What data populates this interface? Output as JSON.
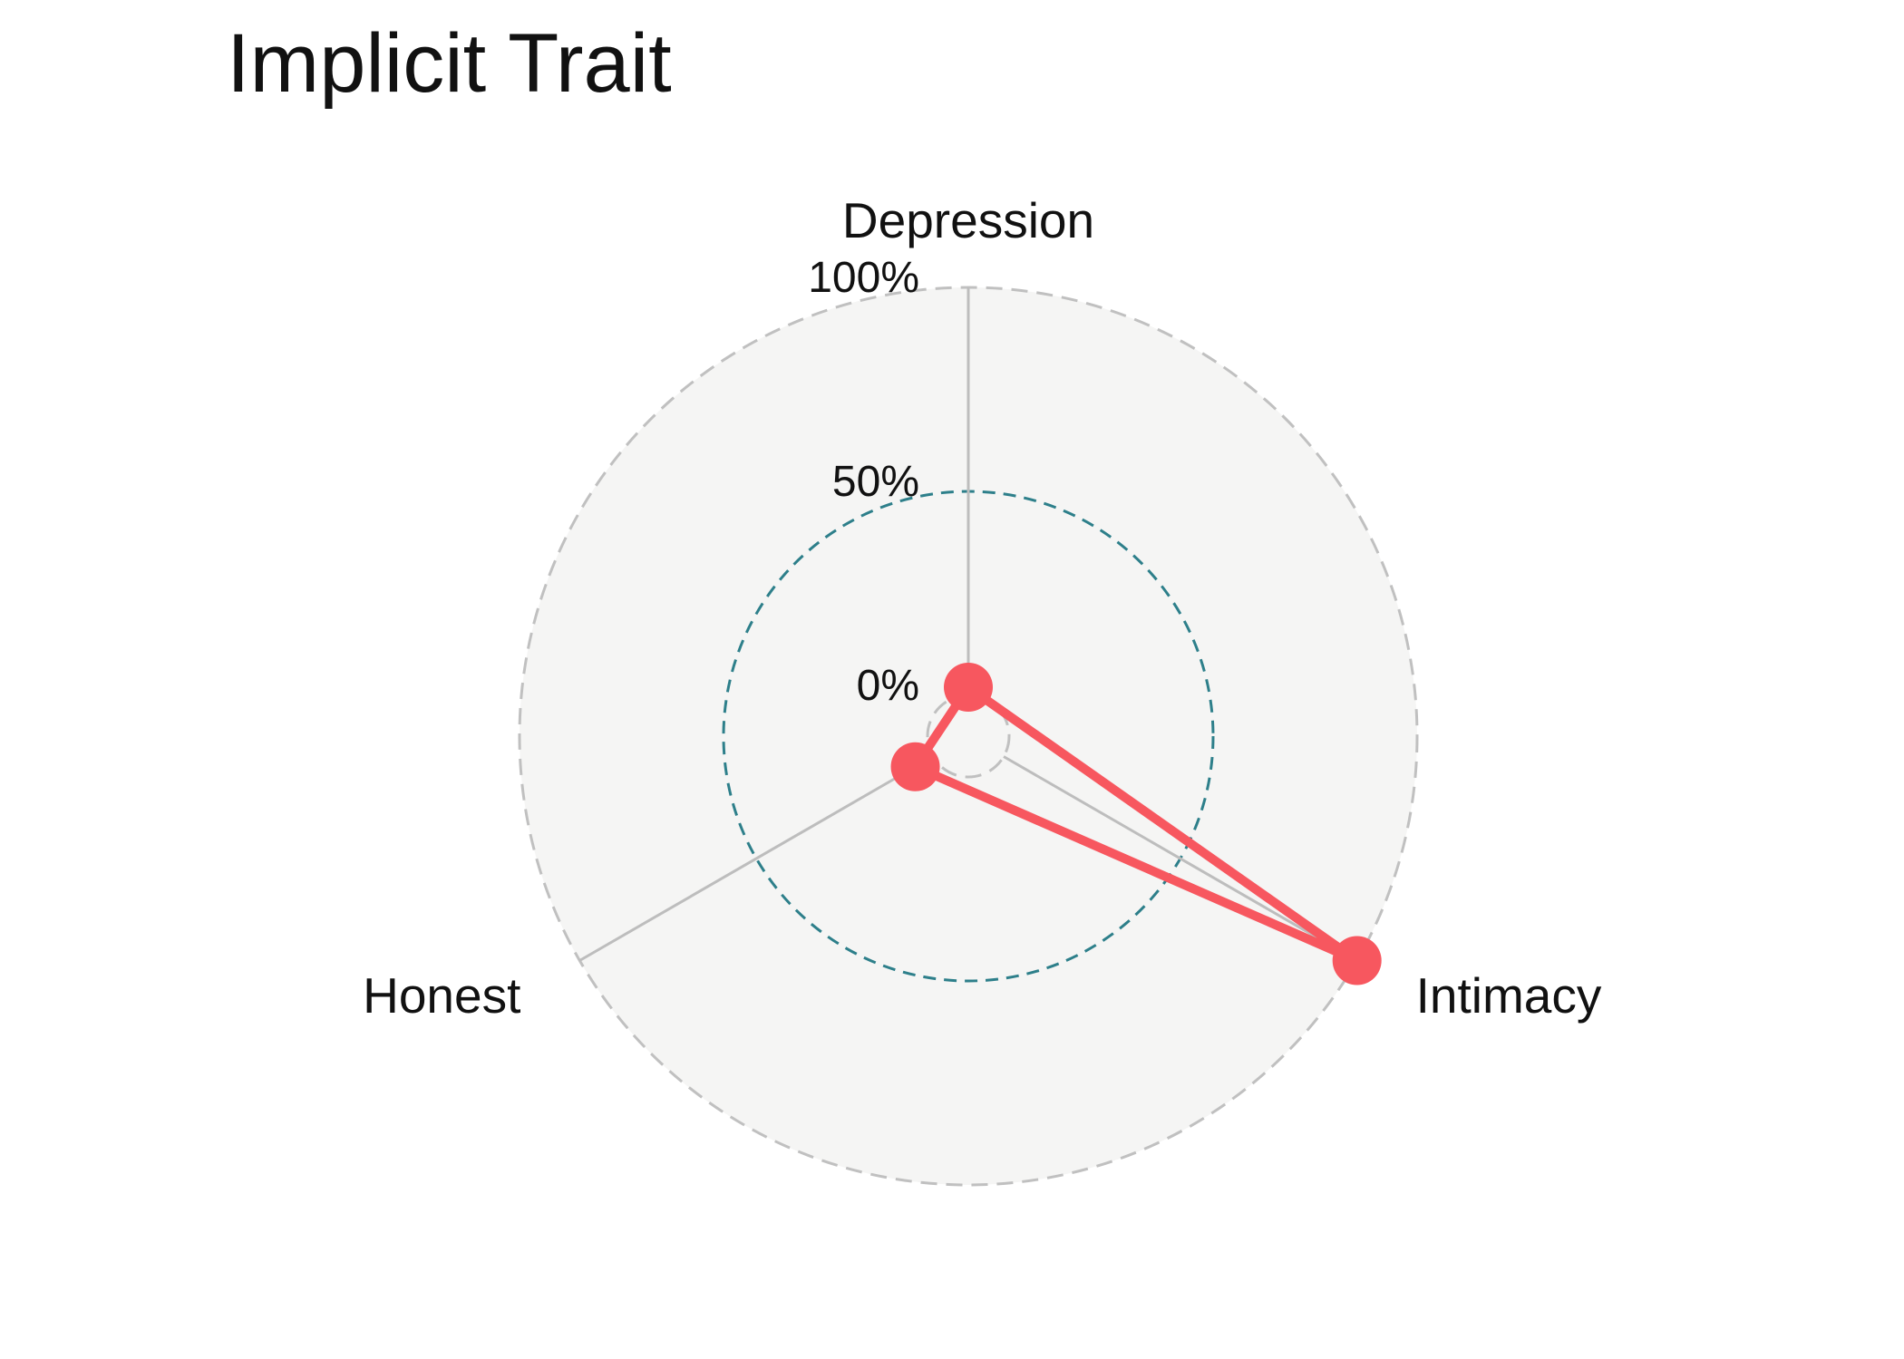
{
  "chart_data": {
    "type": "radar",
    "title": "Implicit Trait",
    "axes": [
      "Depression",
      "Intimacy",
      "Honest"
    ],
    "radial_ticks": [
      {
        "value": 0,
        "label": "0%"
      },
      {
        "value": 50,
        "label": "50%"
      },
      {
        "value": 100,
        "label": "100%"
      }
    ],
    "rlim": [
      -10,
      100
    ],
    "series": [
      {
        "values": [
          2,
          100,
          5
        ]
      }
    ],
    "colors": {
      "series": "#f7575f",
      "grid_outer": "#c0c0c0",
      "grid_mid": "#2d7f8a",
      "spokes": "#bdbdbd",
      "plot_bg": "#f5f5f4"
    },
    "grid": true,
    "legend": false
  }
}
